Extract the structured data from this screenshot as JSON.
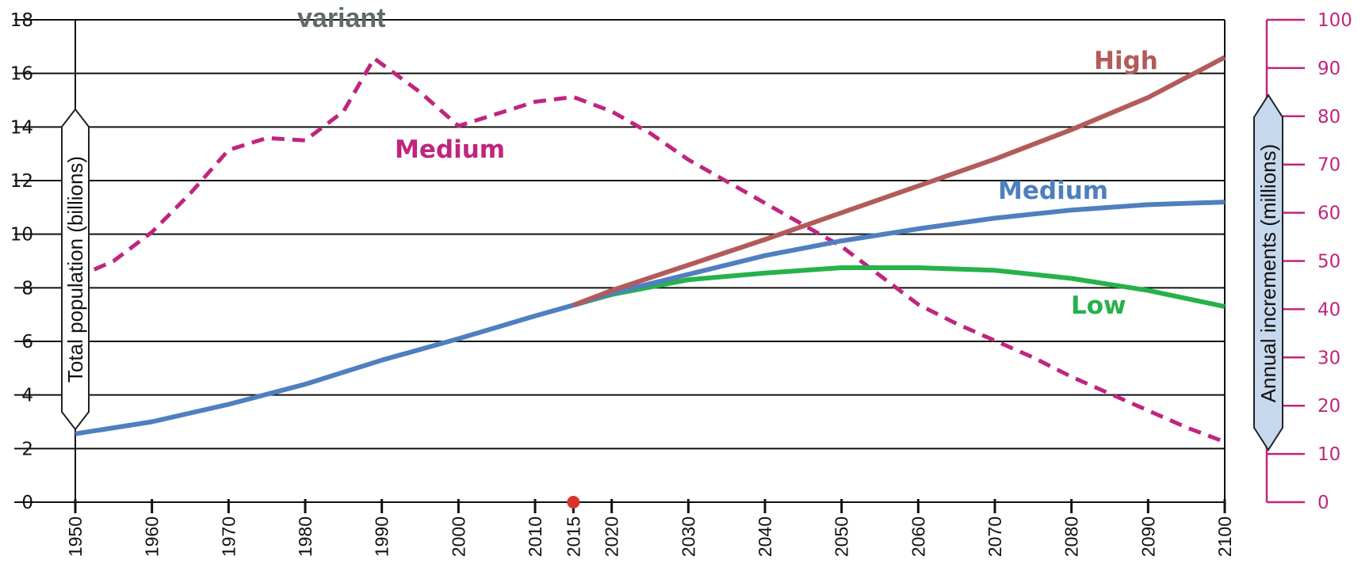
{
  "chart_data": {
    "type": "line",
    "header_text": "variant",
    "x_ticks": [
      1950,
      1960,
      1970,
      1980,
      1990,
      2000,
      2010,
      2015,
      2020,
      2030,
      2040,
      2050,
      2060,
      2070,
      2080,
      2090,
      2100
    ],
    "highlight_year": 2015,
    "y_left": {
      "label": "Total population (billions)",
      "ticks": [
        0,
        2,
        4,
        6,
        8,
        10,
        12,
        14,
        16,
        18
      ],
      "ylim": [
        0,
        18
      ]
    },
    "y_right": {
      "label": "Annual increments (millions)",
      "ticks": [
        0,
        10,
        20,
        30,
        40,
        50,
        60,
        70,
        80,
        90,
        100
      ],
      "ylim": [
        0,
        100
      ]
    },
    "grid": true,
    "colors": {
      "high": "#b35a5a",
      "medium": "#4f7fbf",
      "low": "#27b14a",
      "increments": "#c0257e",
      "right_axis": "#c0257e",
      "highlight": "#d9342b"
    },
    "series": [
      {
        "name": "High",
        "axis": "left",
        "style": "solid",
        "color": "#b35a5a",
        "x": [
          2015,
          2020,
          2030,
          2040,
          2050,
          2060,
          2070,
          2080,
          2090,
          2100
        ],
        "y": [
          7.35,
          7.9,
          8.85,
          9.8,
          10.8,
          11.8,
          12.8,
          13.9,
          15.1,
          16.6
        ]
      },
      {
        "name": "Medium",
        "axis": "left",
        "style": "solid",
        "color": "#4f7fbf",
        "x": [
          1950,
          1960,
          1970,
          1980,
          1990,
          2000,
          2010,
          2015,
          2020,
          2030,
          2040,
          2050,
          2060,
          2070,
          2080,
          2090,
          2100
        ],
        "y": [
          2.55,
          3.0,
          3.65,
          4.4,
          5.3,
          6.1,
          6.95,
          7.35,
          7.8,
          8.5,
          9.2,
          9.75,
          10.2,
          10.6,
          10.9,
          11.1,
          11.2
        ]
      },
      {
        "name": "Low",
        "axis": "left",
        "style": "solid",
        "color": "#27b14a",
        "x": [
          2015,
          2020,
          2030,
          2040,
          2050,
          2060,
          2070,
          2080,
          2090,
          2100
        ],
        "y": [
          7.35,
          7.75,
          8.3,
          8.55,
          8.75,
          8.75,
          8.65,
          8.35,
          7.9,
          7.3
        ]
      },
      {
        "name": "Medium",
        "axis": "right",
        "style": "dashed",
        "color": "#c0257e",
        "x": [
          1950,
          1955,
          1960,
          1965,
          1970,
          1975,
          1980,
          1985,
          1989,
          1995,
          2000,
          2005,
          2010,
          2015,
          2020,
          2025,
          2030,
          2035,
          2040,
          2045,
          2050,
          2055,
          2060,
          2065,
          2070,
          2075,
          2080,
          2085,
          2090,
          2095,
          2100
        ],
        "y": [
          46.5,
          50,
          56,
          64,
          73,
          75.5,
          75,
          81,
          92,
          85,
          78,
          80.5,
          83,
          84,
          81,
          76.5,
          71,
          66.5,
          62,
          57.5,
          53,
          47,
          41,
          37,
          33.5,
          30,
          26,
          22.5,
          19,
          15.5,
          12.5
        ]
      }
    ],
    "annotations": [
      {
        "text": "High",
        "color": "#b35a5a"
      },
      {
        "text": "Medium",
        "color": "#4f7fbf"
      },
      {
        "text": "Low",
        "color": "#27b14a"
      },
      {
        "text": "Medium",
        "color": "#c0257e"
      }
    ]
  }
}
